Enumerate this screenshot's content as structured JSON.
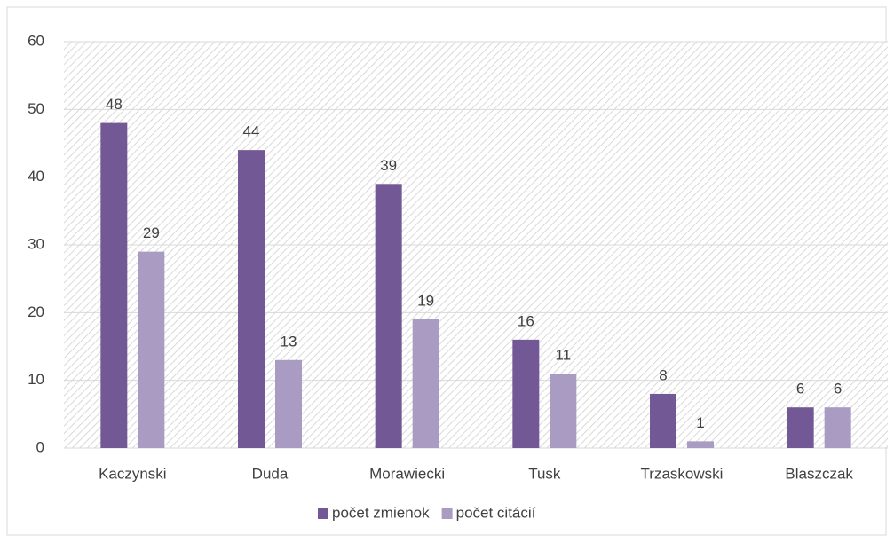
{
  "chart_data": {
    "type": "bar",
    "categories": [
      "Kaczynski",
      "Duda",
      "Morawiecki",
      "Tusk",
      "Trzaskowski",
      "Blaszczak"
    ],
    "series": [
      {
        "name": "počet zmienok",
        "color": "#725894",
        "values": [
          48,
          44,
          39,
          16,
          8,
          6
        ]
      },
      {
        "name": "počet citácií",
        "color": "#a99bc2",
        "values": [
          29,
          13,
          19,
          11,
          1,
          6
        ]
      }
    ],
    "ylim": [
      0,
      60
    ],
    "yticks": [
      0,
      10,
      20,
      30,
      40,
      50,
      60
    ],
    "grid": true,
    "legend": "bottom"
  }
}
